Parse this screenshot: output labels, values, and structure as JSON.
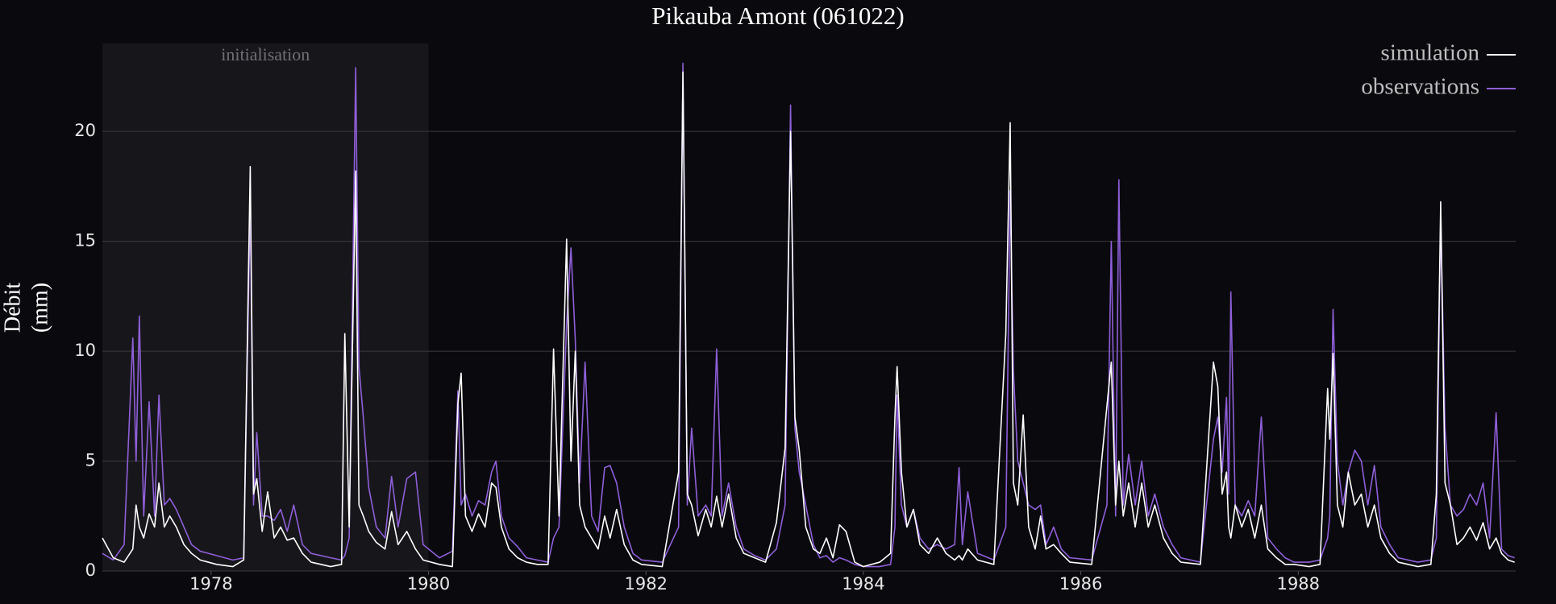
{
  "chart_data": {
    "type": "line",
    "title": "Pikauba Amont (061022)",
    "y_label": [
      "Débit",
      "(mm)"
    ],
    "annotation": {
      "text": "initialisation",
      "x_range": [
        1977.0,
        1980.0
      ]
    },
    "x": [
      1977.0,
      1977.1,
      1977.2,
      1977.28,
      1977.31,
      1977.34,
      1977.38,
      1977.43,
      1977.48,
      1977.52,
      1977.57,
      1977.62,
      1977.68,
      1977.75,
      1977.82,
      1977.9,
      1978.05,
      1978.2,
      1978.3,
      1978.36,
      1978.39,
      1978.42,
      1978.47,
      1978.52,
      1978.58,
      1978.64,
      1978.7,
      1978.76,
      1978.84,
      1978.92,
      1979.1,
      1979.2,
      1979.23,
      1979.27,
      1979.33,
      1979.36,
      1979.4,
      1979.45,
      1979.52,
      1979.6,
      1979.66,
      1979.72,
      1979.8,
      1979.88,
      1979.95,
      1980.1,
      1980.22,
      1980.27,
      1980.3,
      1980.34,
      1980.4,
      1980.46,
      1980.52,
      1980.58,
      1980.62,
      1980.67,
      1980.74,
      1980.82,
      1980.9,
      1981.0,
      1981.1,
      1981.15,
      1981.2,
      1981.27,
      1981.31,
      1981.35,
      1981.39,
      1981.44,
      1981.5,
      1981.56,
      1981.62,
      1981.67,
      1981.73,
      1981.8,
      1981.88,
      1981.96,
      1982.15,
      1982.3,
      1982.34,
      1982.38,
      1982.42,
      1982.48,
      1982.55,
      1982.6,
      1982.65,
      1982.7,
      1982.76,
      1982.83,
      1982.9,
      1983.0,
      1983.1,
      1983.2,
      1983.28,
      1983.33,
      1983.37,
      1983.41,
      1983.47,
      1983.54,
      1983.6,
      1983.66,
      1983.72,
      1983.78,
      1983.84,
      1983.92,
      1984.0,
      1984.15,
      1984.25,
      1984.29,
      1984.31,
      1984.35,
      1984.4,
      1984.46,
      1984.52,
      1984.6,
      1984.68,
      1984.76,
      1984.84,
      1984.88,
      1984.91,
      1984.96,
      1985.05,
      1985.2,
      1985.31,
      1985.35,
      1985.38,
      1985.42,
      1985.47,
      1985.52,
      1985.58,
      1985.63,
      1985.68,
      1985.75,
      1985.82,
      1985.9,
      1986.1,
      1986.24,
      1986.28,
      1986.32,
      1986.35,
      1986.39,
      1986.44,
      1986.5,
      1986.56,
      1986.62,
      1986.68,
      1986.76,
      1986.84,
      1986.92,
      1987.1,
      1987.22,
      1987.26,
      1987.3,
      1987.34,
      1987.36,
      1987.38,
      1987.42,
      1987.48,
      1987.54,
      1987.6,
      1987.66,
      1987.72,
      1987.8,
      1987.88,
      1987.96,
      1988.1,
      1988.2,
      1988.27,
      1988.29,
      1988.32,
      1988.36,
      1988.41,
      1988.46,
      1988.52,
      1988.58,
      1988.64,
      1988.7,
      1988.76,
      1988.84,
      1988.92,
      1989.1,
      1989.22,
      1989.27,
      1989.31,
      1989.35,
      1989.4,
      1989.46,
      1989.52,
      1989.58,
      1989.64,
      1989.7,
      1989.76,
      1989.82,
      1989.87,
      1989.93,
      1989.99
    ],
    "series": [
      {
        "name": "simulation",
        "color": "#ffffff",
        "values": [
          1.5,
          0.6,
          0.4,
          1.0,
          3.0,
          2.0,
          1.5,
          2.6,
          2.0,
          4.0,
          2.0,
          2.5,
          2.0,
          1.2,
          0.8,
          0.5,
          0.3,
          0.2,
          0.5,
          18.4,
          3.5,
          4.2,
          1.8,
          3.6,
          1.5,
          2.0,
          1.4,
          1.5,
          0.8,
          0.4,
          0.2,
          0.3,
          10.8,
          2.0,
          18.2,
          3.0,
          2.5,
          1.8,
          1.3,
          1.0,
          2.7,
          1.2,
          1.8,
          1.0,
          0.5,
          0.3,
          0.2,
          7.6,
          9.0,
          2.5,
          1.8,
          2.6,
          2.0,
          4.0,
          3.8,
          2.0,
          1.0,
          0.6,
          0.4,
          0.3,
          0.3,
          10.1,
          2.5,
          15.1,
          5.0,
          10.0,
          3.0,
          2.0,
          1.5,
          1.0,
          2.5,
          1.5,
          2.8,
          1.2,
          0.5,
          0.3,
          0.2,
          4.5,
          22.7,
          3.5,
          3.0,
          1.6,
          2.8,
          2.0,
          3.4,
          2.0,
          3.5,
          1.5,
          0.8,
          0.6,
          0.4,
          2.2,
          5.6,
          20.0,
          7.0,
          5.5,
          2.0,
          1.0,
          0.8,
          1.5,
          0.6,
          2.1,
          1.8,
          0.4,
          0.2,
          0.4,
          0.8,
          7.0,
          9.3,
          4.5,
          2.0,
          2.8,
          1.2,
          0.8,
          1.5,
          0.8,
          0.5,
          0.7,
          0.5,
          1.0,
          0.5,
          0.3,
          10.8,
          20.4,
          4.0,
          3.0,
          7.1,
          2.0,
          1.0,
          2.5,
          1.0,
          1.2,
          0.8,
          0.4,
          0.3,
          7.5,
          9.5,
          3.0,
          5.0,
          2.5,
          4.0,
          2.0,
          4.0,
          2.0,
          3.0,
          1.5,
          0.8,
          0.4,
          0.3,
          9.5,
          8.4,
          3.5,
          4.5,
          2.0,
          1.5,
          3.0,
          2.0,
          2.8,
          1.5,
          3.0,
          1.0,
          0.6,
          0.3,
          0.3,
          0.2,
          0.3,
          8.3,
          6.0,
          9.9,
          3.0,
          2.0,
          4.5,
          3.0,
          3.5,
          2.0,
          3.0,
          1.5,
          0.8,
          0.4,
          0.2,
          0.3,
          3.5,
          16.8,
          4.0,
          3.0,
          1.2,
          1.5,
          2.0,
          1.4,
          2.2,
          1.0,
          1.5,
          0.8,
          0.5,
          0.4
        ]
      },
      {
        "name": "observations",
        "color": "#8f5fd8",
        "values": [
          0.8,
          0.5,
          1.2,
          10.6,
          5.0,
          11.6,
          2.5,
          7.7,
          2.5,
          8.0,
          3.0,
          3.3,
          2.8,
          2.0,
          1.2,
          0.9,
          0.7,
          0.5,
          0.6,
          16.7,
          3.0,
          6.3,
          2.5,
          2.5,
          2.3,
          2.8,
          1.8,
          3.0,
          1.2,
          0.8,
          0.6,
          0.5,
          0.7,
          1.5,
          22.9,
          9.3,
          7.0,
          3.8,
          2.0,
          1.5,
          4.3,
          2.0,
          4.2,
          4.5,
          1.2,
          0.6,
          0.9,
          8.2,
          3.0,
          3.5,
          2.5,
          3.2,
          3.0,
          4.5,
          5.0,
          2.5,
          1.5,
          1.1,
          0.6,
          0.5,
          0.4,
          1.5,
          2.0,
          11.2,
          14.7,
          10.5,
          4.0,
          9.5,
          2.5,
          1.8,
          4.7,
          4.8,
          4.0,
          2.0,
          0.8,
          0.5,
          0.4,
          2.0,
          23.1,
          3.0,
          6.5,
          2.5,
          3.0,
          2.5,
          10.1,
          2.5,
          4.0,
          2.0,
          1.0,
          0.7,
          0.5,
          1.0,
          3.0,
          21.2,
          6.5,
          4.5,
          3.0,
          1.2,
          0.6,
          0.7,
          0.4,
          0.6,
          0.5,
          0.3,
          0.2,
          0.2,
          0.3,
          2.0,
          8.0,
          3.0,
          2.0,
          2.8,
          1.5,
          1.0,
          1.2,
          1.0,
          1.2,
          4.7,
          1.2,
          3.6,
          0.8,
          0.5,
          2.0,
          17.3,
          9.1,
          5.0,
          4.0,
          3.0,
          2.8,
          3.0,
          1.2,
          2.0,
          1.0,
          0.6,
          0.5,
          3.0,
          15.0,
          2.5,
          17.8,
          3.0,
          5.3,
          3.0,
          5.0,
          2.5,
          3.5,
          2.0,
          1.2,
          0.6,
          0.4,
          6.0,
          7.0,
          4.5,
          7.9,
          3.5,
          12.7,
          3.0,
          2.5,
          3.2,
          2.5,
          7.0,
          1.5,
          1.0,
          0.6,
          0.4,
          0.4,
          0.5,
          1.5,
          2.5,
          11.9,
          5.0,
          3.0,
          4.5,
          5.5,
          5.0,
          3.0,
          4.8,
          2.0,
          1.2,
          0.6,
          0.4,
          0.5,
          1.5,
          16.2,
          6.5,
          3.0,
          2.5,
          2.8,
          3.5,
          3.0,
          4.0,
          1.5,
          7.2,
          1.0,
          0.7,
          0.6
        ]
      }
    ],
    "xlim": [
      1977.0,
      1990.0
    ],
    "xticks": [
      1978,
      1980,
      1982,
      1984,
      1986,
      1988
    ],
    "ylim": [
      0,
      24
    ],
    "yticks": [
      0,
      5,
      10,
      15,
      20
    ],
    "grid": true,
    "legend": "upper right"
  }
}
